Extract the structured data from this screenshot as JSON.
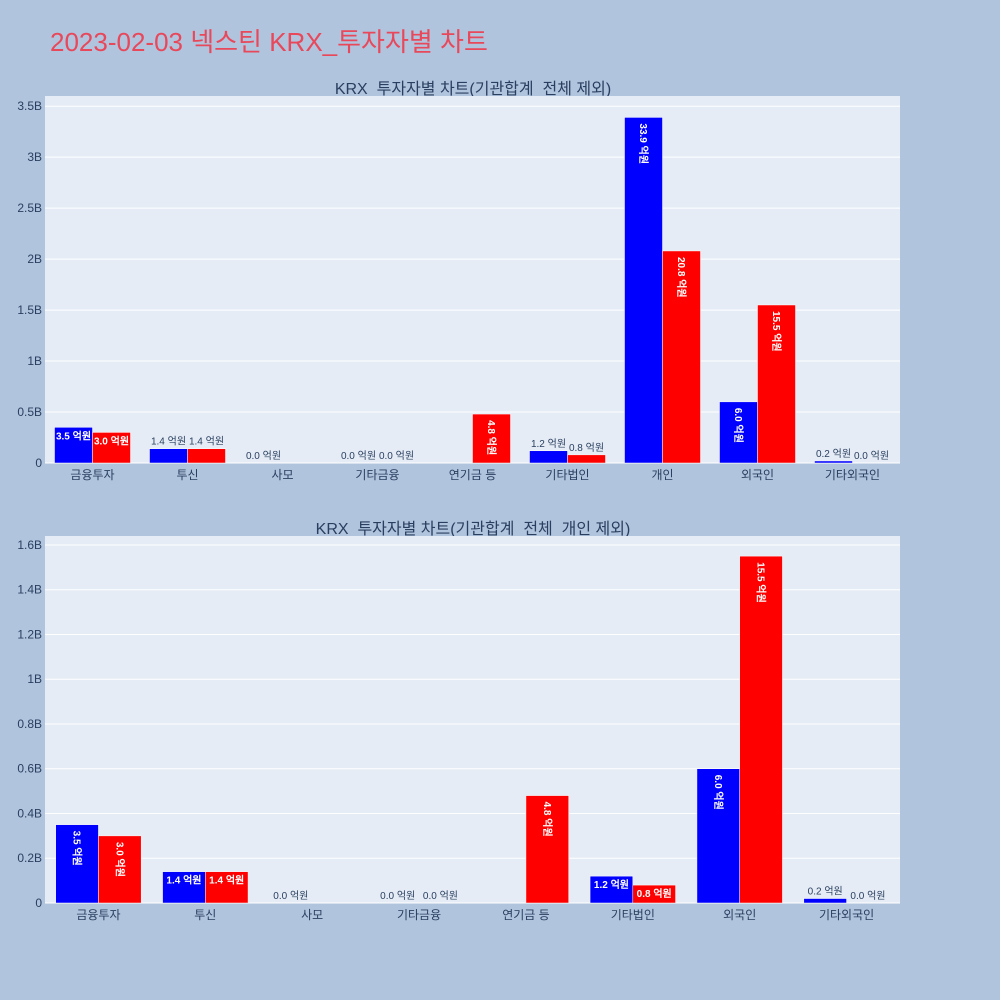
{
  "title": "2023-02-03 넥스틴 KRX_투자자별 차트",
  "colors": {
    "buy": "#0000ff",
    "sell": "#ff0000"
  },
  "chart_data": [
    {
      "type": "bar",
      "title": "KRX_투자자별 차트(기관합계_전체 제외)",
      "categories": [
        "금융투자",
        "투신",
        "사모",
        "기타금융",
        "연기금 등",
        "기타법인",
        "개인",
        "외국인",
        "기타외국인"
      ],
      "series": [
        {
          "values": [
            350000000,
            140000000,
            0,
            0,
            0,
            120000000,
            3390000000,
            600000000,
            20000000
          ],
          "labels": [
            "3.5 억원",
            "1.4 억원",
            "0.0 억원",
            "0.0 억원",
            "",
            "1.2 억원",
            "33.9 억원",
            "6.0 억원",
            "0.2 억원"
          ]
        },
        {
          "values": [
            300000000,
            140000000,
            0,
            0,
            480000000,
            80000000,
            2080000000,
            1550000000,
            0
          ],
          "labels": [
            "3.0 억원",
            "1.4 억원",
            "",
            "0.0 억원",
            "4.8 억원",
            "0.8 억원",
            "20.8 억원",
            "15.5 억원",
            "0.0 억원"
          ]
        }
      ],
      "ylim": [
        0,
        3600000000
      ],
      "yticks": [
        0,
        500000000,
        1000000000,
        1500000000,
        2000000000,
        2500000000,
        3000000000,
        3500000000
      ],
      "ytick_labels": [
        "0",
        "0.5B",
        "1B",
        "1.5B",
        "2B",
        "2.5B",
        "3B",
        "3.5B"
      ],
      "grid": true
    },
    {
      "type": "bar",
      "title": "KRX_투자자별 차트(기관합계_전체_개인 제외)",
      "categories": [
        "금융투자",
        "투신",
        "사모",
        "기타금융",
        "연기금 등",
        "기타법인",
        "외국인",
        "기타외국인"
      ],
      "series": [
        {
          "values": [
            350000000,
            140000000,
            0,
            0,
            0,
            120000000,
            600000000,
            20000000
          ],
          "labels": [
            "3.5 억원",
            "1.4 억원",
            "0.0 억원",
            "0.0 억원",
            "",
            "1.2 억원",
            "6.0 억원",
            "0.2 억원"
          ]
        },
        {
          "values": [
            300000000,
            140000000,
            0,
            0,
            480000000,
            80000000,
            1550000000,
            0
          ],
          "labels": [
            "3.0 억원",
            "1.4 억원",
            "",
            "0.0 억원",
            "4.8 억원",
            "0.8 억원",
            "15.5 억원",
            "0.0 억원"
          ]
        }
      ],
      "ylim": [
        0,
        1640000000
      ],
      "yticks": [
        0,
        200000000,
        400000000,
        600000000,
        800000000,
        1000000000,
        1200000000,
        1400000000,
        1600000000
      ],
      "ytick_labels": [
        "0",
        "0.2B",
        "0.4B",
        "0.6B",
        "0.8B",
        "1B",
        "1.2B",
        "1.4B",
        "1.6B"
      ],
      "grid": true
    }
  ]
}
